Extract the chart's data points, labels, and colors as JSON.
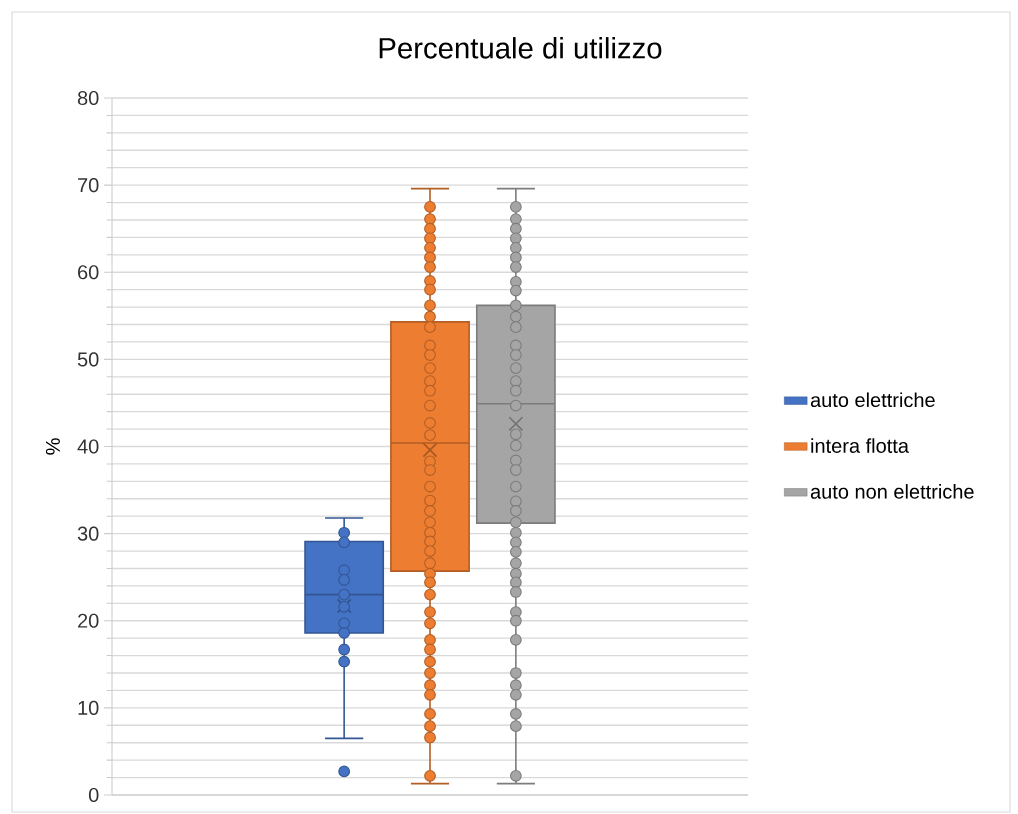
{
  "chart_data": {
    "type": "box",
    "title": "Percentuale di utilizzo",
    "ylabel": "%",
    "categories": [
      null
    ],
    "ylim": [
      0,
      80
    ],
    "yticks": [
      0,
      10,
      20,
      30,
      40,
      50,
      60,
      70,
      80
    ],
    "grid": true,
    "legend": "right",
    "marker": "circle",
    "series": [
      {
        "name": "auto elettriche",
        "color": "#4472c4",
        "boxes": [
          {
            "low": 6.5,
            "q1": 18.6,
            "median": 23.0,
            "q3": 29.1,
            "high": 31.8,
            "mean": 21.7,
            "outliers": [
              2.7
            ]
          }
        ]
      },
      {
        "name": "intera flotta",
        "color": "#ed7d31",
        "boxes": [
          {
            "low": 1.3,
            "q1": 25.7,
            "median": 40.4,
            "q3": 54.3,
            "high": 69.6,
            "mean": 39.6
          }
        ]
      },
      {
        "name": "auto non elettriche",
        "color": "#a5a5a5",
        "boxes": [
          {
            "low": 1.3,
            "q1": 31.2,
            "median": 44.9,
            "q3": 56.2,
            "high": 69.6,
            "mean": 42.6
          }
        ]
      },
      {
        "type": "scatter",
        "color": "#4472c4",
        "x": [
          null,
          null,
          null,
          null,
          null,
          null,
          null,
          null,
          null,
          null
        ],
        "values": [
          30.1,
          29.0,
          25.8,
          24.7,
          23.0,
          21.6,
          19.7,
          18.6,
          16.7,
          15.3
        ]
      },
      {
        "type": "scatter",
        "color": "#ed7d31",
        "x": [
          null,
          null,
          null,
          null,
          null,
          null,
          null,
          null,
          null,
          null,
          null,
          null,
          null,
          null,
          null,
          null,
          null,
          null,
          null,
          null,
          null,
          null,
          null,
          null,
          null,
          null,
          null,
          null,
          null,
          null,
          null,
          null,
          null,
          null,
          null,
          null,
          null,
          null,
          null,
          null,
          null,
          null,
          null,
          null,
          null
        ],
        "values": [
          67.5,
          66.1,
          65.0,
          63.9,
          62.8,
          61.7,
          60.6,
          59.0,
          58.0,
          56.2,
          54.9,
          53.7,
          51.6,
          50.5,
          49.0,
          47.5,
          46.4,
          44.7,
          42.7,
          41.3,
          38.3,
          37.3,
          35.4,
          33.8,
          32.6,
          31.3,
          30.1,
          29.1,
          28.0,
          26.6,
          25.4,
          24.4,
          23.0,
          21.0,
          19.7,
          17.8,
          16.7,
          15.3,
          14.0,
          12.6,
          11.5,
          9.3,
          7.9,
          6.6,
          2.2
        ]
      },
      {
        "type": "scatter",
        "color": "#a5a5a5",
        "x": [
          null,
          null,
          null,
          null,
          null,
          null,
          null,
          null,
          null,
          null,
          null,
          null,
          null,
          null,
          null,
          null,
          null,
          null,
          null,
          null,
          null,
          null,
          null,
          null,
          null,
          null,
          null,
          null,
          null,
          null,
          null,
          null,
          null,
          null,
          null,
          null,
          null,
          null,
          null,
          null,
          null,
          null
        ],
        "values": [
          67.5,
          66.1,
          65.0,
          63.9,
          62.8,
          61.7,
          60.6,
          58.9,
          57.9,
          56.2,
          54.9,
          53.7,
          51.6,
          50.5,
          49.0,
          47.5,
          46.4,
          44.7,
          41.4,
          40.1,
          38.4,
          37.3,
          35.4,
          33.7,
          32.6,
          31.3,
          30.1,
          29.0,
          27.9,
          26.6,
          25.4,
          24.4,
          23.3,
          21.0,
          20.0,
          17.8,
          14.0,
          12.6,
          11.5,
          9.3,
          7.9,
          2.2
        ]
      }
    ]
  }
}
